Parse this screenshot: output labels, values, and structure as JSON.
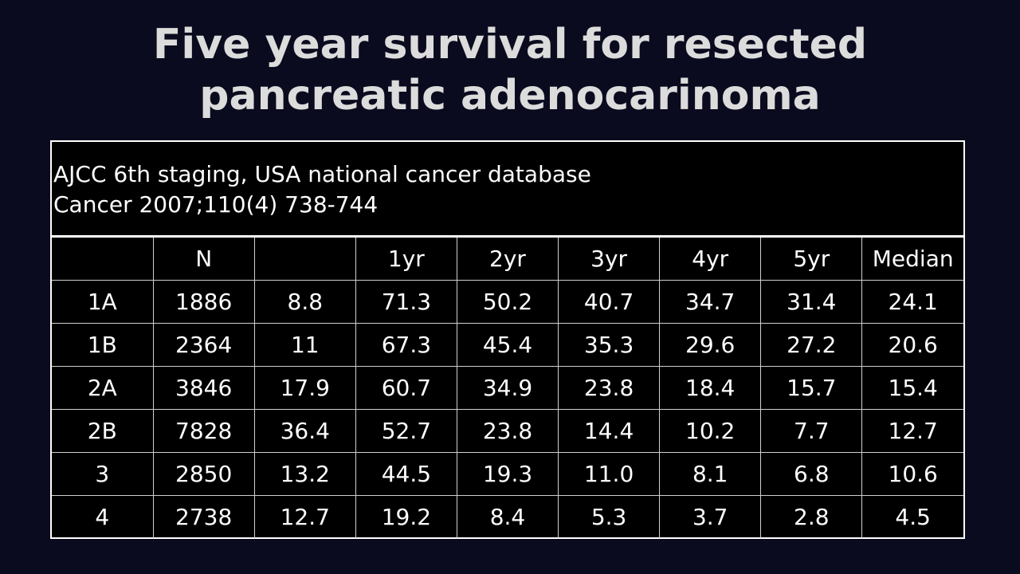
{
  "title": {
    "line1": "Five year survival for resected",
    "line2": "pancreatic adenocarinoma"
  },
  "source": {
    "line1": "AJCC 6th staging, USA national cancer database",
    "line2": "Cancer 2007;110(4) 738-744"
  },
  "table": {
    "headers": [
      "",
      "N",
      "",
      "1yr",
      "2yr",
      "3yr",
      "4yr",
      "5yr",
      "Median"
    ],
    "rows": [
      [
        "1A",
        "1886",
        "8.8",
        "71.3",
        "50.2",
        "40.7",
        "34.7",
        "31.4",
        "24.1"
      ],
      [
        "1B",
        "2364",
        "11",
        "67.3",
        "45.4",
        "35.3",
        "29.6",
        "27.2",
        "20.6"
      ],
      [
        "2A",
        "3846",
        "17.9",
        "60.7",
        "34.9",
        "23.8",
        "18.4",
        "15.7",
        "15.4"
      ],
      [
        "2B",
        "7828",
        "36.4",
        "52.7",
        "23.8",
        "14.4",
        "10.2",
        "7.7",
        "12.7"
      ],
      [
        "3",
        "2850",
        "13.2",
        "44.5",
        "19.3",
        "11.0",
        "8.1",
        "6.8",
        "10.6"
      ],
      [
        "4",
        "2738",
        "12.7",
        "19.2",
        "8.4",
        "5.3",
        "3.7",
        "2.8",
        "4.5"
      ]
    ]
  }
}
